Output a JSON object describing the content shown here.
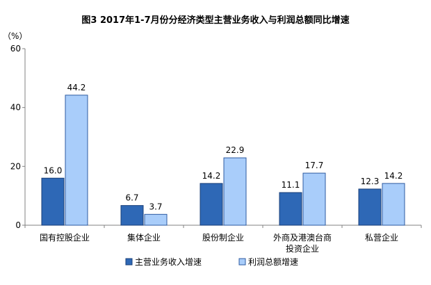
{
  "chart_data": {
    "type": "bar",
    "title": "图3  2017年1-7月份分经济类型主营业务收入与利润总额同比增速",
    "ylabel": "（%）",
    "ylim": [
      0,
      60
    ],
    "yticks": [
      "0",
      "20",
      "40",
      "60"
    ],
    "grid": false,
    "legend_position": "bottom",
    "categories": [
      [
        "国有控股企业"
      ],
      [
        "集体企业"
      ],
      [
        "股份制企业"
      ],
      [
        "外商及港澳台商",
        "投资企业"
      ],
      [
        "私营企业"
      ]
    ],
    "series": [
      {
        "name": "主营业务收入增速",
        "values": [
          16.0,
          6.7,
          14.2,
          11.1,
          12.3
        ],
        "labels": [
          "16.0",
          "6.7",
          "14.2",
          "11.1",
          "12.3"
        ]
      },
      {
        "name": "利润总额增速",
        "values": [
          44.2,
          3.7,
          22.9,
          17.7,
          14.2
        ],
        "labels": [
          "44.2",
          "3.7",
          "22.9",
          "17.7",
          "14.2"
        ]
      }
    ],
    "colors": {
      "series0_fill": "#2e68b6",
      "series0_stroke": "#1a3f78",
      "series1_fill": "#a9cdfa",
      "series1_stroke": "#2d5aa0",
      "axis": "#808080"
    }
  }
}
